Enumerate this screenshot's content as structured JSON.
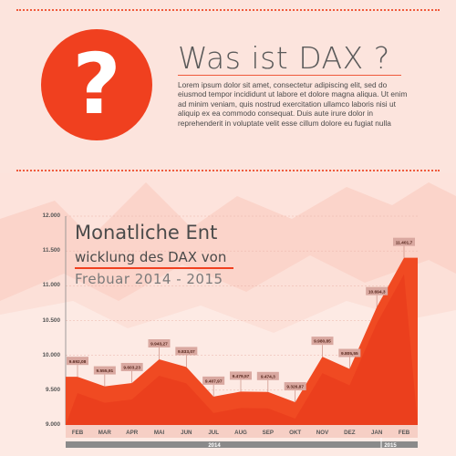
{
  "header": {
    "icon": "question-mark-icon",
    "question_glyph": "?",
    "title": "Was ist DAX ?",
    "body": "Lorem ipsum dolor sit amet, consectetur adipiscing elit, sed do eiusmod tempor incididunt ut labore et dolore magna aliqua. Ut enim ad minim veniam, quis nostrud exercitation ullamco laboris nisi ut aliquip ex ea commodo consequat. Duis aute irure dolor in reprehenderit in voluptate velit esse cillum dolore eu fugiat nulla"
  },
  "colors": {
    "accent": "#f0401f",
    "area": "#f04a22",
    "label_bg": "#d9a8a0"
  },
  "chart_data": {
    "type": "area",
    "title_line1": "Monatliche Ent",
    "title_line2": "wicklung des DAX von",
    "title_line3": "Frebuar 2014 - 2015",
    "categories": [
      "FEB",
      "MAR",
      "APR",
      "MAI",
      "JUN",
      "JUL",
      "AUG",
      "SEP",
      "OKT",
      "NOV",
      "DEZ",
      "JAN",
      "FEB"
    ],
    "values": [
      9692.08,
      9555.91,
      9603.23,
      9943.27,
      9833.07,
      9407.97,
      9479.57,
      9474.3,
      9326.87,
      9980.85,
      9805.55,
      10694.3,
      11401.7
    ],
    "labels": [
      "9.692,08",
      "9.555,91",
      "9.603,23",
      "9.943,27",
      "9.833,07",
      "9.407,97",
      "9.479,57",
      "9.474,3",
      "9.326,87",
      "9.980,85",
      "9.805,55",
      "10.694,3",
      "11.401,7"
    ],
    "y_ticks": [
      "9.000",
      "9.500",
      "10.000",
      "10.500",
      "11.000",
      "11.500",
      "12.000"
    ],
    "ylim": [
      9000,
      12000
    ],
    "years": [
      "2014",
      "2015"
    ]
  }
}
